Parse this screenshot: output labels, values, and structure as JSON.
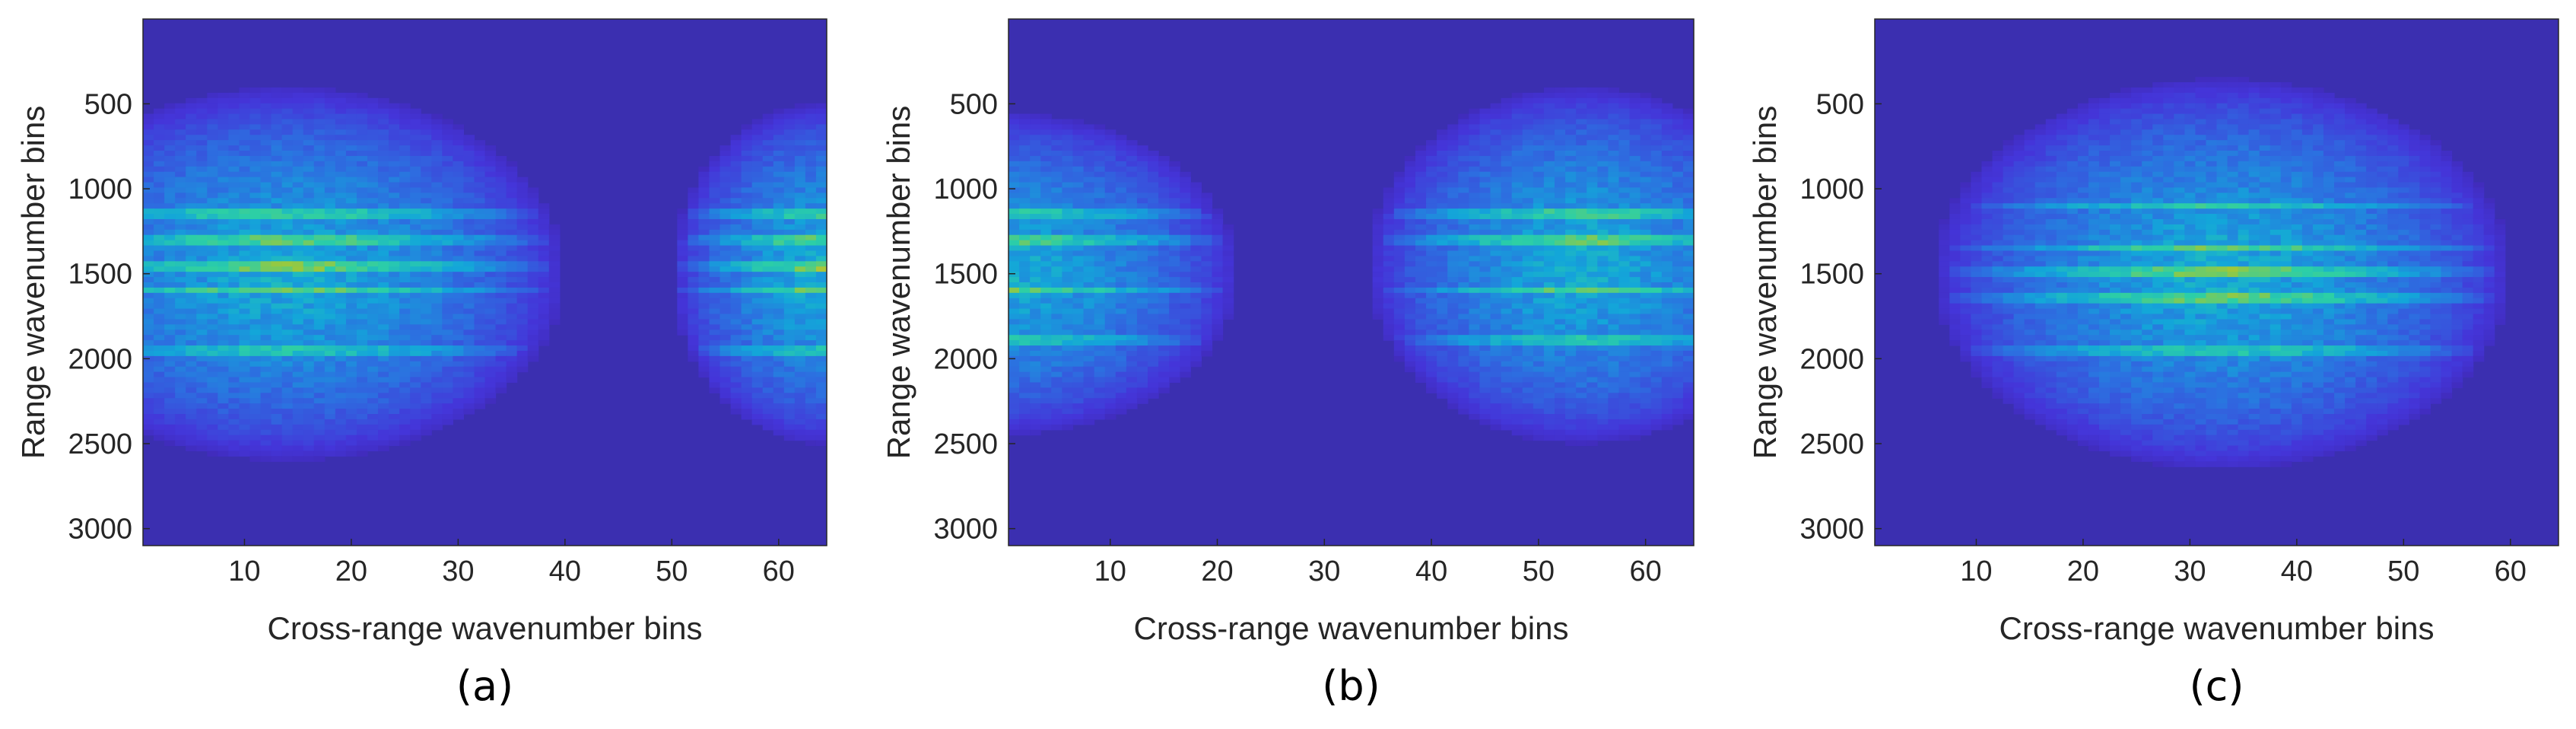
{
  "colors": {
    "background": "#3b2fb0",
    "colormap": "parula",
    "colormap_stops": [
      "#3e26a8",
      "#4435d9",
      "#2c70e0",
      "#13a6d9",
      "#2ccfa6",
      "#9fc838",
      "#e8bb35",
      "#f9fb15"
    ],
    "axes_color": "#262626"
  },
  "chart_data": [
    {
      "type": "heatmap",
      "panel_label": "(a)",
      "xlabel": "Cross-range wavenumber bins",
      "ylabel": "Range wavenumber bins",
      "xlim": [
        0.5,
        64.5
      ],
      "ylim": [
        3100,
        1
      ],
      "y_direction": "reversed",
      "xticks": [
        10,
        20,
        30,
        40,
        50,
        60
      ],
      "yticks": [
        500,
        1000,
        1500,
        2000,
        2500,
        3000
      ],
      "energy_regions": [
        {
          "x_center": 14,
          "x_halfwidth": 26,
          "y_center": 1500,
          "y_halfwidth": 1100
        },
        {
          "x_center": 64,
          "x_halfwidth": 14,
          "y_center": 1500,
          "y_halfwidth": 1000
        }
      ],
      "bright_rows": [
        1150,
        1300,
        1450,
        1600,
        1950
      ]
    },
    {
      "type": "heatmap",
      "panel_label": "(b)",
      "xlabel": "Cross-range wavenumber bins",
      "ylabel": "Range wavenumber bins",
      "xlim": [
        0.5,
        64.5
      ],
      "ylim": [
        3100,
        1
      ],
      "y_direction": "reversed",
      "xticks": [
        10,
        20,
        30,
        40,
        50,
        60
      ],
      "yticks": [
        500,
        1000,
        1500,
        2000,
        2500,
        3000
      ],
      "energy_regions": [
        {
          "x_center": 0,
          "x_halfwidth": 22,
          "y_center": 1500,
          "y_halfwidth": 950
        },
        {
          "x_center": 54,
          "x_halfwidth": 20,
          "y_center": 1450,
          "y_halfwidth": 1050
        }
      ],
      "bright_rows": [
        1150,
        1300,
        1600,
        1900
      ]
    },
    {
      "type": "heatmap",
      "panel_label": "(c)",
      "xlabel": "Cross-range wavenumber bins",
      "ylabel": "Range wavenumber bins",
      "xlim": [
        0.5,
        64.5
      ],
      "ylim": [
        3100,
        1
      ],
      "y_direction": "reversed",
      "xticks": [
        10,
        20,
        30,
        40,
        50,
        60
      ],
      "yticks": [
        500,
        1000,
        1500,
        2000,
        2500,
        3000
      ],
      "energy_regions": [
        {
          "x_center": 33,
          "x_halfwidth": 27,
          "y_center": 1500,
          "y_halfwidth": 1150
        }
      ],
      "bright_rows": [
        1100,
        1350,
        1500,
        1650,
        1950
      ]
    }
  ]
}
